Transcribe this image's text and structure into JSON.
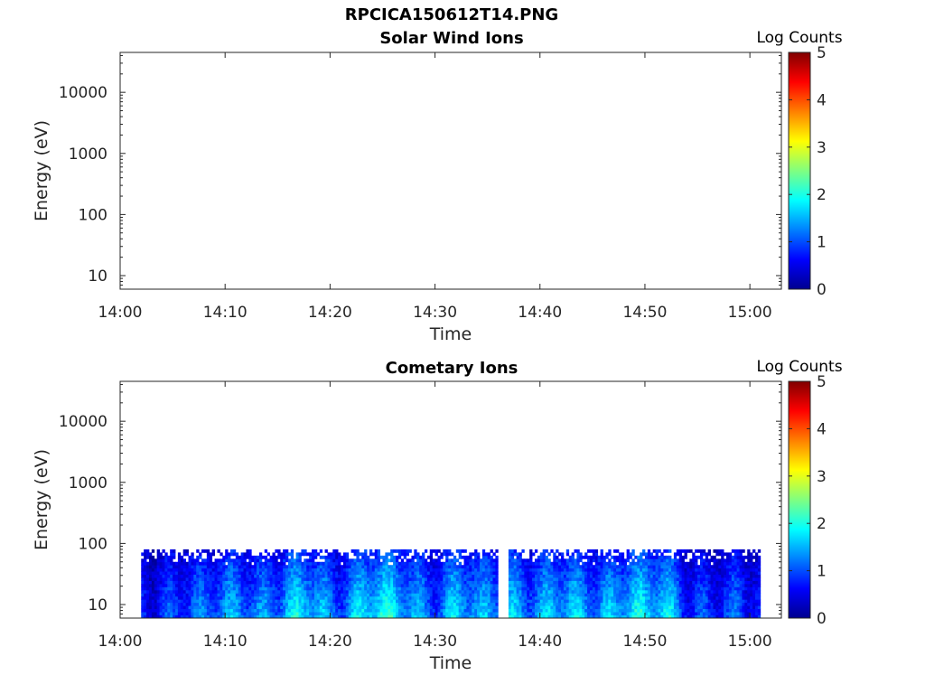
{
  "figure_title": "RPCICA150612T14.PNG",
  "colormap": [
    "#00008f",
    "#0000ff",
    "#0080ff",
    "#00ffff",
    "#80ff80",
    "#ffff00",
    "#ff8000",
    "#ff0000",
    "#800000"
  ],
  "chart_data": [
    {
      "type": "heatmap",
      "title": "Solar Wind Ions",
      "xlabel": "Time",
      "ylabel": "Energy (eV)",
      "colorbar_label": "Log Counts",
      "x_ticks": [
        "14:00",
        "14:10",
        "14:20",
        "14:30",
        "14:40",
        "14:50",
        "15:00"
      ],
      "xlim": [
        "14:00",
        "15:03"
      ],
      "y_ticks": [
        "10",
        "100",
        "1000",
        "10000"
      ],
      "ylim": [
        6,
        45000
      ],
      "yscale": "log",
      "colorbar_ticks": [
        "0",
        "1",
        "2",
        "3",
        "4",
        "5"
      ],
      "clim": [
        0,
        5
      ],
      "data": []
    },
    {
      "type": "heatmap",
      "title": "Cometary Ions",
      "xlabel": "Time",
      "ylabel": "Energy (eV)",
      "colorbar_label": "Log Counts",
      "x_ticks": [
        "14:00",
        "14:10",
        "14:20",
        "14:30",
        "14:40",
        "14:50",
        "15:00"
      ],
      "xlim": [
        "14:00",
        "15:03"
      ],
      "y_ticks": [
        "10",
        "100",
        "1000",
        "10000"
      ],
      "ylim": [
        6,
        45000
      ],
      "yscale": "log",
      "colorbar_ticks": [
        "0",
        "1",
        "2",
        "3",
        "4",
        "5"
      ],
      "clim": [
        0,
        5
      ],
      "data": {
        "time_start": "14:02",
        "time_end": "15:01",
        "energy_min": 6,
        "energy_max": 80,
        "gap": [
          "14:36",
          "14:37"
        ],
        "intensity_profile": [
          {
            "t": "14:02",
            "log_counts": 0.6
          },
          {
            "t": "14:04",
            "log_counts": 1.0
          },
          {
            "t": "14:06",
            "log_counts": 1.3
          },
          {
            "t": "14:08",
            "log_counts": 0.9
          },
          {
            "t": "14:10",
            "log_counts": 1.2
          },
          {
            "t": "14:12",
            "log_counts": 1.5
          },
          {
            "t": "14:15",
            "log_counts": 1.4
          },
          {
            "t": "14:18",
            "log_counts": 1.6
          },
          {
            "t": "14:20",
            "log_counts": 1.3
          },
          {
            "t": "14:22",
            "log_counts": 1.7
          },
          {
            "t": "14:24",
            "log_counts": 1.8
          },
          {
            "t": "14:26",
            "log_counts": 1.6
          },
          {
            "t": "14:28",
            "log_counts": 1.5
          },
          {
            "t": "14:30",
            "log_counts": 1.4
          },
          {
            "t": "14:32",
            "log_counts": 1.6
          },
          {
            "t": "14:34",
            "log_counts": 1.1
          },
          {
            "t": "14:37",
            "log_counts": 1.8
          },
          {
            "t": "14:40",
            "log_counts": 1.3
          },
          {
            "t": "14:42",
            "log_counts": 1.4
          },
          {
            "t": "14:45",
            "log_counts": 1.6
          },
          {
            "t": "14:48",
            "log_counts": 1.7
          },
          {
            "t": "14:50",
            "log_counts": 1.5
          },
          {
            "t": "14:52",
            "log_counts": 1.8
          },
          {
            "t": "14:54",
            "log_counts": 1.2
          },
          {
            "t": "14:56",
            "log_counts": 0.8
          },
          {
            "t": "14:58",
            "log_counts": 0.7
          },
          {
            "t": "15:00",
            "log_counts": 0.9
          }
        ]
      }
    }
  ]
}
